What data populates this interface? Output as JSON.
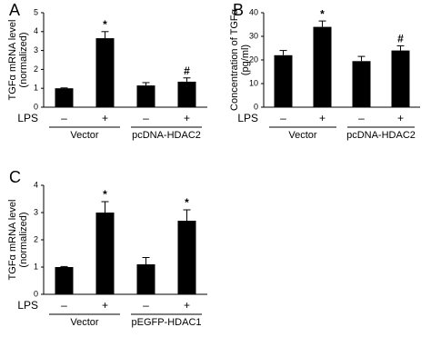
{
  "chart_data": [
    {
      "type": "bar",
      "panel_label": "A",
      "y_label": [
        "TGFα mRNA level",
        "(normalized)"
      ],
      "x_row_label": "LPS",
      "categories": [
        "–",
        "+",
        "–",
        "+"
      ],
      "groups": [
        "Vector",
        "pcDNA-HDAC2"
      ],
      "series": [
        {
          "color": "#000000",
          "values": [
            1.0,
            3.65,
            1.15,
            1.35
          ],
          "errors": [
            0.02,
            0.35,
            0.15,
            0.2
          ]
        }
      ],
      "annotations": [
        null,
        "*",
        null,
        "#"
      ],
      "ylim": [
        0,
        5
      ],
      "yticks": [
        0,
        1,
        2,
        3,
        4,
        5
      ]
    },
    {
      "type": "bar",
      "panel_label": "B",
      "y_label": [
        "Concentration of TGFα",
        "(pg/ml)"
      ],
      "x_row_label": "LPS",
      "categories": [
        "–",
        "+",
        "–",
        "+"
      ],
      "groups": [
        "Vector",
        "pcDNA-HDAC2"
      ],
      "series": [
        {
          "color": "#000000",
          "values": [
            22,
            34,
            19.5,
            24
          ],
          "errors": [
            2,
            2.5,
            2,
            2
          ]
        }
      ],
      "annotations": [
        null,
        "*",
        null,
        "#"
      ],
      "ylim": [
        0,
        40
      ],
      "yticks": [
        0,
        10,
        20,
        30,
        40
      ]
    },
    {
      "type": "bar",
      "panel_label": "C",
      "y_label": [
        "TGFα mRNA level",
        "(normalized)"
      ],
      "x_row_label": "LPS",
      "categories": [
        "–",
        "+",
        "–",
        "+"
      ],
      "groups": [
        "Vector",
        "pEGFP-HDAC1"
      ],
      "series": [
        {
          "color": "#000000",
          "values": [
            1.0,
            3.0,
            1.1,
            2.7
          ],
          "errors": [
            0.02,
            0.4,
            0.25,
            0.4
          ]
        }
      ],
      "annotations": [
        null,
        "*",
        null,
        "*"
      ],
      "ylim": [
        0,
        4
      ],
      "yticks": [
        0,
        1,
        2,
        3,
        4
      ]
    }
  ]
}
